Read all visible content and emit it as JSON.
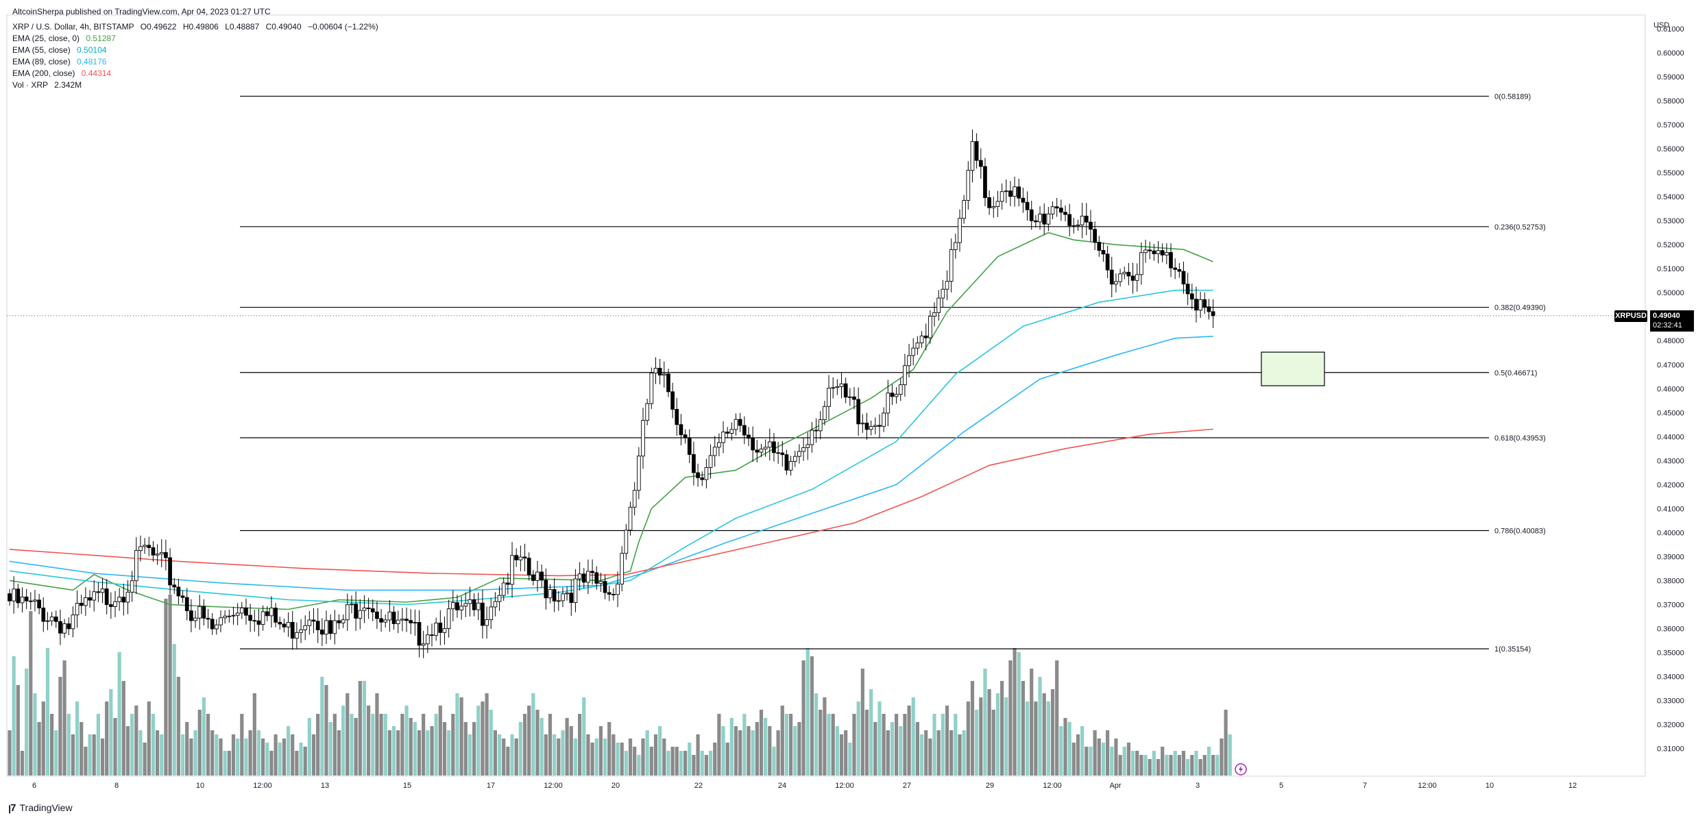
{
  "header": {
    "publisher": "AltcoinSherpa published on TradingView.com, Apr 04, 2023 01:27 UTC",
    "symbol": "XRP / U.S. Dollar, 4h, BITSTAMP",
    "ohlc": {
      "o": "O0.49622",
      "h": "H0.49806",
      "l": "L0.48887",
      "c": "C0.49040",
      "chg": "−0.00604 (−1.22%)"
    }
  },
  "indicators": [
    {
      "label": "EMA (25, close, 0)",
      "value": "0.51287",
      "color": "#43a047"
    },
    {
      "label": "EMA (55, close)",
      "value": "0.50104",
      "color": "#26c6da"
    },
    {
      "label": "EMA (89, close)",
      "value": "0.48176",
      "color": "#29b6f6"
    },
    {
      "label": "EMA (200, close)",
      "value": "0.44314",
      "color": "#ef5350"
    },
    {
      "label": "Vol · XRP",
      "value": "2.342M",
      "color": "#131722"
    }
  ],
  "price_tag": {
    "symbol": "XRPUSD",
    "price": "0.49040",
    "countdown": "02:32:41"
  },
  "brand": {
    "name": "TradingView"
  },
  "chart_data": {
    "type": "candlestick",
    "title": "XRP / U.S. Dollar, 4h, BITSTAMP",
    "currency": "USD",
    "y_axis": {
      "min": 0.3,
      "max": 0.62,
      "step": 0.01,
      "decimals": 5
    },
    "x_ticks": [
      "6",
      "8",
      "10",
      "12:00",
      "13",
      "15",
      "17",
      "12:00",
      "20",
      "22",
      "24",
      "12:00",
      "27",
      "29",
      "12:00",
      "Apr",
      "3",
      "5",
      "7",
      "12:00",
      "10",
      "12"
    ],
    "fib_levels": [
      {
        "ratio": "0",
        "label": "0(0.58189)",
        "price": 0.58189
      },
      {
        "ratio": "0.236",
        "label": "0.236(0.52753)",
        "price": 0.52753
      },
      {
        "ratio": "0.382",
        "label": "0.382(0.49390)",
        "price": 0.4939
      },
      {
        "ratio": "0.5",
        "label": "0.5(0.46671)",
        "price": 0.46671
      },
      {
        "ratio": "0.618",
        "label": "0.618(0.43953)",
        "price": 0.43953
      },
      {
        "ratio": "0.786",
        "label": "0.786(0.40083)",
        "price": 0.40083
      },
      {
        "ratio": "1",
        "label": "1(0.35154)",
        "price": 0.35154
      }
    ],
    "target_zone": {
      "price_top": 0.4752,
      "price_bottom": 0.4612,
      "fill": "#e8f9e0"
    },
    "current_price": 0.4904,
    "price_path": [
      [
        0.3745,
        0
      ],
      [
        0.37,
        8
      ],
      [
        0.364,
        14
      ],
      [
        0.372,
        18
      ],
      [
        0.38,
        27
      ],
      [
        0.396,
        32
      ],
      [
        0.387,
        37
      ],
      [
        0.371,
        43
      ],
      [
        0.362,
        48
      ],
      [
        0.373,
        54
      ],
      [
        0.369,
        60
      ],
      [
        0.362,
        66
      ],
      [
        0.371,
        72
      ],
      [
        0.36,
        76
      ],
      [
        0.377,
        84
      ],
      [
        0.365,
        90
      ],
      [
        0.36,
        96
      ],
      [
        0.368,
        103
      ],
      [
        0.37,
        112
      ],
      [
        0.39,
        120
      ],
      [
        0.383,
        124
      ],
      [
        0.378,
        130
      ],
      [
        0.382,
        137
      ],
      [
        0.378,
        143
      ],
      [
        0.432,
        149
      ],
      [
        0.469,
        152
      ],
      [
        0.462,
        156
      ],
      [
        0.424,
        164
      ],
      [
        0.451,
        172
      ],
      [
        0.438,
        178
      ],
      [
        0.429,
        184
      ],
      [
        0.448,
        190
      ],
      [
        0.462,
        196
      ],
      [
        0.448,
        204
      ],
      [
        0.459,
        210
      ],
      [
        0.485,
        216
      ],
      [
        0.521,
        224
      ],
      [
        0.561,
        228
      ],
      [
        0.54,
        232
      ],
      [
        0.55,
        236
      ],
      [
        0.53,
        242
      ],
      [
        0.541,
        248
      ],
      [
        0.529,
        254
      ],
      [
        0.51,
        262
      ],
      [
        0.518,
        270
      ],
      [
        0.516,
        276
      ],
      [
        0.498,
        282
      ],
      [
        0.4904,
        285
      ]
    ],
    "ema_series": [
      {
        "name": "EMA (25, close, 0)",
        "color": "#43a047",
        "points": [
          [
            0,
            0.38
          ],
          [
            15,
            0.376
          ],
          [
            20,
            0.3825
          ],
          [
            28,
            0.376
          ],
          [
            38,
            0.37
          ],
          [
            50,
            0.369
          ],
          [
            66,
            0.368
          ],
          [
            78,
            0.372
          ],
          [
            94,
            0.371
          ],
          [
            106,
            0.373
          ],
          [
            116,
            0.381
          ],
          [
            140,
            0.38
          ],
          [
            147,
            0.384
          ],
          [
            149,
            0.396
          ],
          [
            152,
            0.41
          ],
          [
            160,
            0.423
          ],
          [
            172,
            0.426
          ],
          [
            180,
            0.434
          ],
          [
            190,
            0.443
          ],
          [
            204,
            0.456
          ],
          [
            214,
            0.468
          ],
          [
            222,
            0.492
          ],
          [
            234,
            0.515
          ],
          [
            246,
            0.525
          ],
          [
            252,
            0.522
          ],
          [
            262,
            0.52
          ],
          [
            278,
            0.518
          ],
          [
            285,
            0.5129
          ]
        ]
      },
      {
        "name": "EMA (55, close)",
        "color": "#26c6da",
        "points": [
          [
            0,
            0.384
          ],
          [
            20,
            0.3795
          ],
          [
            40,
            0.376
          ],
          [
            66,
            0.372
          ],
          [
            94,
            0.37
          ],
          [
            110,
            0.372
          ],
          [
            130,
            0.375
          ],
          [
            147,
            0.38
          ],
          [
            160,
            0.394
          ],
          [
            172,
            0.406
          ],
          [
            190,
            0.418
          ],
          [
            210,
            0.438
          ],
          [
            224,
            0.466
          ],
          [
            240,
            0.486
          ],
          [
            258,
            0.496
          ],
          [
            276,
            0.501
          ],
          [
            285,
            0.501
          ]
        ]
      },
      {
        "name": "EMA (89, close)",
        "color": "#29b6f6",
        "points": [
          [
            0,
            0.388
          ],
          [
            20,
            0.383
          ],
          [
            50,
            0.379
          ],
          [
            80,
            0.376
          ],
          [
            110,
            0.376
          ],
          [
            140,
            0.378
          ],
          [
            150,
            0.383
          ],
          [
            170,
            0.396
          ],
          [
            190,
            0.408
          ],
          [
            210,
            0.42
          ],
          [
            226,
            0.442
          ],
          [
            244,
            0.464
          ],
          [
            262,
            0.474
          ],
          [
            276,
            0.481
          ],
          [
            285,
            0.4818
          ]
        ]
      },
      {
        "name": "EMA (200, close)",
        "color": "#ef5350",
        "points": [
          [
            0,
            0.393
          ],
          [
            40,
            0.388
          ],
          [
            70,
            0.385
          ],
          [
            100,
            0.383
          ],
          [
            130,
            0.382
          ],
          [
            146,
            0.3825
          ],
          [
            160,
            0.388
          ],
          [
            180,
            0.396
          ],
          [
            200,
            0.404
          ],
          [
            216,
            0.415
          ],
          [
            232,
            0.428
          ],
          [
            250,
            0.435
          ],
          [
            270,
            0.441
          ],
          [
            285,
            0.4431
          ]
        ]
      }
    ],
    "volume_heights": [
      0.22,
      0.58,
      0.44,
      0.12,
      0.52,
      0.8,
      0.4,
      0.26,
      0.36,
      0.62,
      0.3,
      0.22,
      0.48,
      0.56,
      0.3,
      0.2,
      0.36,
      0.26,
      0.14,
      0.2,
      0.2,
      0.3,
      0.18,
      0.36,
      0.42,
      0.28,
      0.6,
      0.46,
      0.24,
      0.3,
      0.34,
      0.22,
      0.16,
      0.36,
      0.3,
      0.22,
      0.2,
      0.86,
      0.88,
      0.64,
      0.48,
      0.2,
      0.26,
      0.18,
      0.22,
      0.32,
      0.38,
      0.3,
      0.22,
      0.2,
      0.18,
      0.12,
      0.12,
      0.2,
      0.18,
      0.3,
      0.18,
      0.22,
      0.4,
      0.22,
      0.18,
      0.16,
      0.12,
      0.2,
      0.16,
      0.18,
      0.24,
      0.2,
      0.12,
      0.16,
      0.14,
      0.28,
      0.2,
      0.3,
      0.48,
      0.44,
      0.26,
      0.3,
      0.22,
      0.34,
      0.4,
      0.3,
      0.28,
      0.46,
      0.46,
      0.34,
      0.3,
      0.4,
      0.3,
      0.3,
      0.22,
      0.24,
      0.22,
      0.3,
      0.34,
      0.28,
      0.26,
      0.22,
      0.3,
      0.22,
      0.24,
      0.3,
      0.34,
      0.26,
      0.22,
      0.3,
      0.4,
      0.38,
      0.26,
      0.2,
      0.26,
      0.34,
      0.36,
      0.4,
      0.32,
      0.22,
      0.2,
      0.18,
      0.14,
      0.2,
      0.18,
      0.26,
      0.3,
      0.34,
      0.4,
      0.32,
      0.28,
      0.2,
      0.3,
      0.2,
      0.18,
      0.22,
      0.28,
      0.24,
      0.18,
      0.3,
      0.38,
      0.2,
      0.16,
      0.18,
      0.24,
      0.18,
      0.26,
      0.2,
      0.16,
      0.16,
      0.12,
      0.18,
      0.14,
      0.1,
      0.18,
      0.22,
      0.14,
      0.2,
      0.24,
      0.18,
      0.12,
      0.14,
      0.14,
      0.12,
      0.12,
      0.16,
      0.1,
      0.2,
      0.12,
      0.1,
      0.12,
      0.16,
      0.3,
      0.24,
      0.16,
      0.28,
      0.24,
      0.22,
      0.3,
      0.24,
      0.22,
      0.26,
      0.32,
      0.28,
      0.24,
      0.14,
      0.22,
      0.34,
      0.3,
      0.3,
      0.24,
      0.26,
      0.56,
      0.62,
      0.58,
      0.4,
      0.32,
      0.38,
      0.3,
      0.3,
      0.24,
      0.2,
      0.22,
      0.16,
      0.3,
      0.36,
      0.52,
      0.32,
      0.42,
      0.26,
      0.36,
      0.3,
      0.22,
      0.26,
      0.3,
      0.24,
      0.3,
      0.34,
      0.38,
      0.26,
      0.2,
      0.22,
      0.18,
      0.3,
      0.22,
      0.3,
      0.34,
      0.22,
      0.3,
      0.2,
      0.22,
      0.36,
      0.46,
      0.32,
      0.38,
      0.52,
      0.42,
      0.32,
      0.4,
      0.46,
      0.38,
      0.56,
      0.62,
      0.6,
      0.46,
      0.36,
      0.52,
      0.36,
      0.48,
      0.4,
      0.36,
      0.42,
      0.56,
      0.24,
      0.28,
      0.26,
      0.16,
      0.2,
      0.24,
      0.14,
      0.14,
      0.22,
      0.18,
      0.16,
      0.22,
      0.14,
      0.18,
      0.1,
      0.14,
      0.16,
      0.12,
      0.12,
      0.1,
      0.1,
      0.08,
      0.12,
      0.08,
      0.14,
      0.1,
      0.1,
      0.12,
      0.1,
      0.12,
      0.08,
      0.1,
      0.12,
      0.08,
      0.1,
      0.14,
      0.1,
      0.1,
      0.18,
      0.32,
      0.2
    ]
  }
}
